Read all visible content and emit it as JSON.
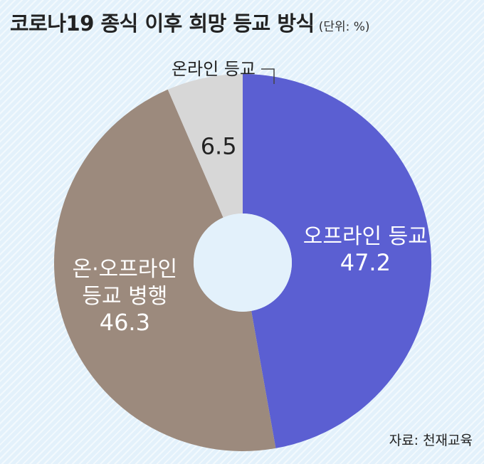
{
  "chart_data": {
    "type": "pie",
    "title": "코로나19 종식 이후 희망 등교 방식",
    "unit": "(단위: %)",
    "source": "자료: 천재교육",
    "slices": [
      {
        "label": "오프라인 등교",
        "lines": [
          "오프라인 등교"
        ],
        "value": 47.2,
        "color": "#5b5fd2",
        "text_color": "#ffffff"
      },
      {
        "label": "온·오프라인 등교 병행",
        "lines": [
          "온·오프라인",
          "등교 병행"
        ],
        "value": 46.3,
        "color": "#9c8a7d",
        "text_color": "#ffffff"
      },
      {
        "label": "온라인 등교",
        "lines": [
          "온라인 등교"
        ],
        "value": 6.5,
        "color": "#d7d7d7",
        "text_color": "#222222"
      }
    ]
  }
}
